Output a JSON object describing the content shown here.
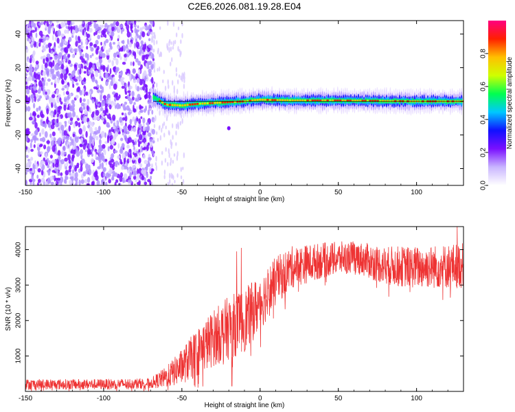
{
  "title": "C2E6.2026.081.19.28.E04",
  "chart_data": [
    {
      "type": "heatmap",
      "xlabel": "Height of straight line (km)",
      "ylabel": "Frequency (Hz)",
      "xlim": [
        -150,
        130
      ],
      "ylim": [
        -50,
        48
      ],
      "xticks": [
        "-150",
        "-100",
        "-50",
        "0",
        "50",
        "100"
      ],
      "xtick_values": [
        -150,
        -100,
        -50,
        0,
        50,
        100
      ],
      "yticks": [
        "40",
        "20",
        "0",
        "-20",
        "-40"
      ],
      "ytick_values": [
        40,
        20,
        0,
        -20,
        -40
      ],
      "noise_region_km": [
        -150,
        -68
      ],
      "signal_region_km": [
        -68,
        130
      ],
      "signal_center_hz": [
        {
          "km": -68,
          "hz": 2.5
        },
        {
          "km": -60,
          "hz": -2
        },
        {
          "km": -50,
          "hz": -2.5
        },
        {
          "km": -40,
          "hz": -1.5
        },
        {
          "km": -30,
          "hz": -1
        },
        {
          "km": -20,
          "hz": -0.5
        },
        {
          "km": -10,
          "hz": 0
        },
        {
          "km": 0,
          "hz": 1
        },
        {
          "km": 20,
          "hz": 0.5
        },
        {
          "km": 50,
          "hz": 0.5
        },
        {
          "km": 100,
          "hz": 0
        },
        {
          "km": 130,
          "hz": 0
        }
      ],
      "colorbar": {
        "label": "Normalized spectral amplitude",
        "range": [
          0,
          1
        ],
        "ticks": [
          "0.0",
          "0.2",
          "0.4",
          "0.6",
          "0.8"
        ],
        "tick_values": [
          0.0,
          0.2,
          0.4,
          0.6,
          0.8
        ],
        "colors": [
          "#ffffff",
          "#c9b6ff",
          "#7a10ff",
          "#1010ff",
          "#00c8ff",
          "#00ff50",
          "#d0ff00",
          "#ffc000",
          "#ff2000",
          "#ff0080"
        ]
      }
    },
    {
      "type": "line",
      "xlabel": "Height of straight line (km)",
      "ylabel": "SNR (10 * v/v)",
      "xlim": [
        -150,
        130
      ],
      "ylim": [
        0,
        4650
      ],
      "xticks": [
        "-150",
        "-100",
        "-50",
        "0",
        "50",
        "100"
      ],
      "xtick_values": [
        -150,
        -100,
        -50,
        0,
        50,
        100
      ],
      "yticks": [
        "1000",
        "2000",
        "3000",
        "4000"
      ],
      "ytick_values": [
        1000,
        2000,
        3000,
        4000
      ],
      "line_color": "#ee3333",
      "series_envelope": [
        {
          "x": -150,
          "mean": 200,
          "amp": 150
        },
        {
          "x": -100,
          "mean": 200,
          "amp": 150
        },
        {
          "x": -70,
          "mean": 230,
          "amp": 150
        },
        {
          "x": -60,
          "mean": 400,
          "amp": 300
        },
        {
          "x": -50,
          "mean": 700,
          "amp": 500
        },
        {
          "x": -40,
          "mean": 1100,
          "amp": 700
        },
        {
          "x": -30,
          "mean": 1500,
          "amp": 800
        },
        {
          "x": -20,
          "mean": 1800,
          "amp": 900
        },
        {
          "x": -10,
          "mean": 2000,
          "amp": 900
        },
        {
          "x": 0,
          "mean": 2500,
          "amp": 800
        },
        {
          "x": 10,
          "mean": 3100,
          "amp": 700
        },
        {
          "x": 20,
          "mean": 3500,
          "amp": 600
        },
        {
          "x": 40,
          "mean": 3700,
          "amp": 500
        },
        {
          "x": 60,
          "mean": 3800,
          "amp": 450
        },
        {
          "x": 80,
          "mean": 3550,
          "amp": 550
        },
        {
          "x": 100,
          "mean": 3500,
          "amp": 600
        },
        {
          "x": 130,
          "mean": 3550,
          "amp": 650
        }
      ],
      "spikes": [
        {
          "x": -12,
          "y": 4050
        },
        {
          "x": -15,
          "y": 3950
        },
        {
          "x": -18,
          "y": 150
        },
        {
          "x": -6,
          "y": 1000
        },
        {
          "x": 126,
          "y": 4650
        }
      ]
    }
  ]
}
